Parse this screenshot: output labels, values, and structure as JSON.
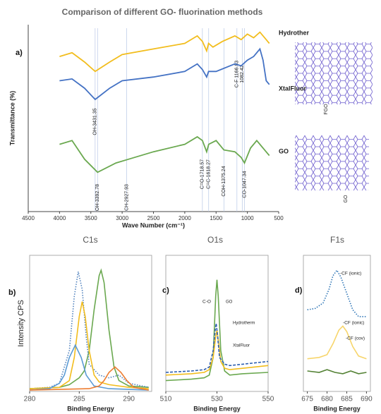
{
  "chart_data": [
    {
      "type": "line",
      "title": "Comparison of different GO- fluorination methods",
      "panel_label": "a)",
      "xlabel": "Wave Number (cm⁻¹)",
      "ylabel": "Transmittance (%)",
      "xlim": [
        4500,
        500
      ],
      "xticks": [
        4500,
        4000,
        3500,
        3000,
        2500,
        2000,
        1500,
        1000,
        500
      ],
      "ylim": [
        0,
        100
      ],
      "series": [
        {
          "name": "Hydrother",
          "color": "#f2bd1d",
          "x": [
            4000,
            3800,
            3600,
            3431,
            3200,
            3000,
            2500,
            2000,
            1800,
            1718,
            1650,
            1620,
            1550,
            1400,
            1200,
            1100,
            1000,
            900,
            800,
            700,
            650
          ],
          "values": [
            83,
            85,
            80,
            75,
            80,
            84,
            87,
            90,
            94,
            91,
            86,
            90,
            88,
            91,
            94,
            92,
            95,
            93,
            96,
            92,
            90
          ]
        },
        {
          "name": "XtalFluor",
          "color": "#4472c4",
          "x": [
            4000,
            3800,
            3600,
            3431,
            3200,
            3000,
            2500,
            2000,
            1800,
            1718,
            1650,
            1620,
            1500,
            1200,
            1100,
            1000,
            900,
            800,
            750,
            700,
            650
          ],
          "values": [
            70,
            71,
            66,
            60,
            66,
            70,
            72,
            75,
            79,
            76,
            72,
            75,
            75,
            79,
            78,
            81,
            83,
            87,
            81,
            70,
            68
          ]
        },
        {
          "name": "GO",
          "color": "#6aa84f",
          "x": [
            4000,
            3800,
            3600,
            3392,
            3100,
            2900,
            2500,
            2000,
            1800,
            1718,
            1650,
            1618,
            1500,
            1375,
            1200,
            1100,
            1047,
            950,
            850,
            750,
            650
          ],
          "values": [
            36,
            38,
            28,
            21,
            26,
            28,
            32,
            36,
            40,
            38,
            32,
            36,
            38,
            33,
            32,
            29,
            26,
            34,
            38,
            34,
            30
          ]
        }
      ],
      "annotations": [
        {
          "text": "OH-3431.35",
          "x": 3431.35
        },
        {
          "text": "OH-3392.78",
          "x": 3392.78
        },
        {
          "text": "CH-2927.93",
          "x": 2927.93
        },
        {
          "text": "C=O-1718.57",
          "x": 1718.57
        },
        {
          "text": "C=C-1618.27",
          "x": 1618.27
        },
        {
          "text": "COH-1375.24",
          "x": 1375.24
        },
        {
          "text": "CO-1047.34",
          "x": 1047.34
        },
        {
          "text": "C-F 1166.93",
          "x": 1166.93
        },
        {
          "text": "1082.42",
          "x": 1082.42
        }
      ],
      "structure_labels": [
        "FGO",
        "GO"
      ]
    },
    {
      "type": "line",
      "title": "C1s",
      "panel_label": "b)",
      "xlabel": "Binding Energy",
      "ylabel": "Intensity CPS",
      "xlim": [
        280,
        292.3
      ],
      "xticks": [
        280,
        285,
        290
      ],
      "ylim": [
        0,
        100
      ],
      "series": [
        {
          "color": "#6aa84f",
          "x": [
            280,
            283,
            284,
            285,
            285.5,
            286,
            286.5,
            287,
            287.2,
            287.5,
            288,
            288.5,
            289,
            290,
            292
          ],
          "values": [
            2,
            3,
            5,
            10,
            15,
            30,
            60,
            85,
            89,
            80,
            45,
            18,
            8,
            4,
            3
          ]
        },
        {
          "color": "#4f81bd",
          "style": "dotted",
          "x": [
            280,
            282,
            283,
            284,
            284.5,
            284.9,
            285.3,
            285.7,
            286,
            287,
            288,
            289,
            290,
            292
          ],
          "values": [
            2,
            3,
            6,
            30,
            70,
            88,
            75,
            40,
            20,
            12,
            10,
            12,
            6,
            3
          ]
        },
        {
          "color": "#f2bd1d",
          "x": [
            280,
            283,
            284,
            284.5,
            285,
            285.3,
            285.6,
            286,
            286.5,
            287,
            288,
            290,
            292
          ],
          "values": [
            2,
            3,
            8,
            25,
            55,
            66,
            55,
            30,
            12,
            7,
            5,
            3,
            2
          ]
        },
        {
          "color": "#5b9bd5",
          "x": [
            280,
            282,
            283,
            283.5,
            284,
            284.6,
            285.2,
            285.7,
            286.5,
            288,
            292
          ],
          "values": [
            1,
            2,
            6,
            12,
            25,
            34,
            25,
            12,
            4,
            2,
            1
          ]
        },
        {
          "color": "#ed7d31",
          "x": [
            280,
            286,
            287,
            287.5,
            288,
            288.6,
            289.2,
            289.8,
            290.5,
            292
          ],
          "values": [
            1,
            2,
            4,
            8,
            14,
            18,
            14,
            8,
            3,
            1
          ]
        }
      ]
    },
    {
      "type": "line",
      "title": "O1s",
      "panel_label": "c)",
      "xlabel": "Binding Energy",
      "xlim": [
        510,
        550
      ],
      "xticks": [
        510,
        530,
        550
      ],
      "ylim": [
        0,
        100
      ],
      "series": [
        {
          "name": "GO",
          "color": "#6aa84f",
          "x": [
            510,
            520,
            525,
            527,
            528.5,
            529.5,
            530,
            530.5,
            531.5,
            533,
            535,
            540,
            550
          ],
          "values": [
            8,
            9,
            10,
            12,
            25,
            70,
            82,
            70,
            30,
            15,
            12,
            13,
            14
          ]
        },
        {
          "name": "Hydrotherm",
          "color": "#f2bd1d",
          "x": [
            510,
            520,
            525,
            527,
            528.5,
            529.5,
            530,
            530.5,
            531.5,
            533,
            535,
            540,
            550
          ],
          "values": [
            12,
            13,
            14,
            16,
            25,
            40,
            45,
            38,
            22,
            17,
            16,
            17,
            19
          ]
        },
        {
          "name": "XtalFluor",
          "color": "#2e5fb0",
          "style": "dashed",
          "x": [
            510,
            520,
            525,
            527,
            528.5,
            529.3,
            529.7,
            530.2,
            531,
            533,
            535,
            540,
            550
          ],
          "values": [
            14,
            15,
            16,
            18,
            30,
            45,
            50,
            42,
            25,
            20,
            19,
            20,
            22
          ]
        }
      ],
      "annotations": [
        "C-O"
      ]
    },
    {
      "type": "line",
      "title": "F1s",
      "panel_label": "d)",
      "xlabel": "Binding Energy",
      "xlim": [
        674,
        691
      ],
      "xticks": [
        675,
        680,
        685,
        690
      ],
      "ylim": [
        0,
        100
      ],
      "series": [
        {
          "color": "#2e75b6",
          "style": "dotted",
          "x": [
            675,
            677,
            679,
            680.5,
            681.5,
            682.5,
            683.5,
            685,
            686.5,
            688,
            690
          ],
          "values": [
            60,
            61,
            65,
            75,
            85,
            89,
            84,
            72,
            60,
            55,
            55
          ]
        },
        {
          "color": "#f7d56b",
          "x": [
            675,
            678,
            680,
            681.5,
            683,
            684,
            685,
            686.5,
            688,
            690
          ],
          "values": [
            24,
            25,
            27,
            35,
            45,
            48,
            44,
            33,
            26,
            24
          ]
        },
        {
          "color": "#548235",
          "x": [
            675,
            678,
            680,
            682,
            684,
            686,
            688,
            690
          ],
          "values": [
            15,
            14,
            16,
            14,
            13,
            15,
            13,
            14
          ]
        }
      ],
      "annotations": [
        "-CF (ionic)",
        "-CF (ionic)",
        "-CF (cov)"
      ]
    }
  ]
}
